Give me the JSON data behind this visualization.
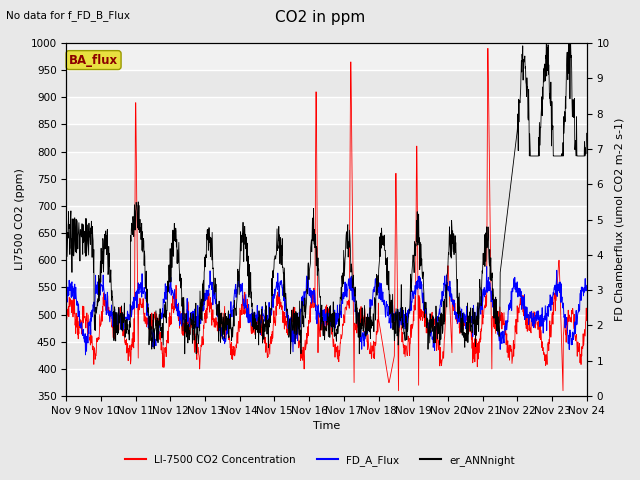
{
  "title": "CO2 in ppm",
  "top_left_text": "No data for f_FD_B_Flux",
  "ba_flux_label": "BA_flux",
  "xlabel": "Time",
  "ylabel_left": "LI7500 CO2 (ppm)",
  "ylabel_right": "FD Chamberflux (umol CO2 m-2 s-1)",
  "ylim_left": [
    350,
    1000
  ],
  "ylim_right": [
    0.0,
    10.0
  ],
  "xtick_labels": [
    "Nov 9",
    "Nov 10",
    "Nov 11",
    "Nov 12",
    "Nov 13",
    "Nov 14",
    "Nov 15",
    "Nov 16",
    "Nov 17",
    "Nov 18",
    "Nov 19",
    "Nov 20",
    "Nov 21",
    "Nov 22",
    "Nov 23",
    "Nov 24"
  ],
  "legend_entries": [
    "LI-7500 CO2 Concentration",
    "FD_A_Flux",
    "er_ANNnight"
  ],
  "legend_colors": [
    "red",
    "blue",
    "black"
  ],
  "fig_facecolor": "#e8e8e8",
  "plot_facecolor": "#e8e8e8",
  "ba_flux_box_facecolor": "#e8e040",
  "ba_flux_text_color": "#8b0000",
  "title_fontsize": 11,
  "label_fontsize": 8,
  "tick_fontsize": 7.5,
  "n_points": 1500,
  "figwidth": 6.4,
  "figheight": 4.8,
  "dpi": 100
}
